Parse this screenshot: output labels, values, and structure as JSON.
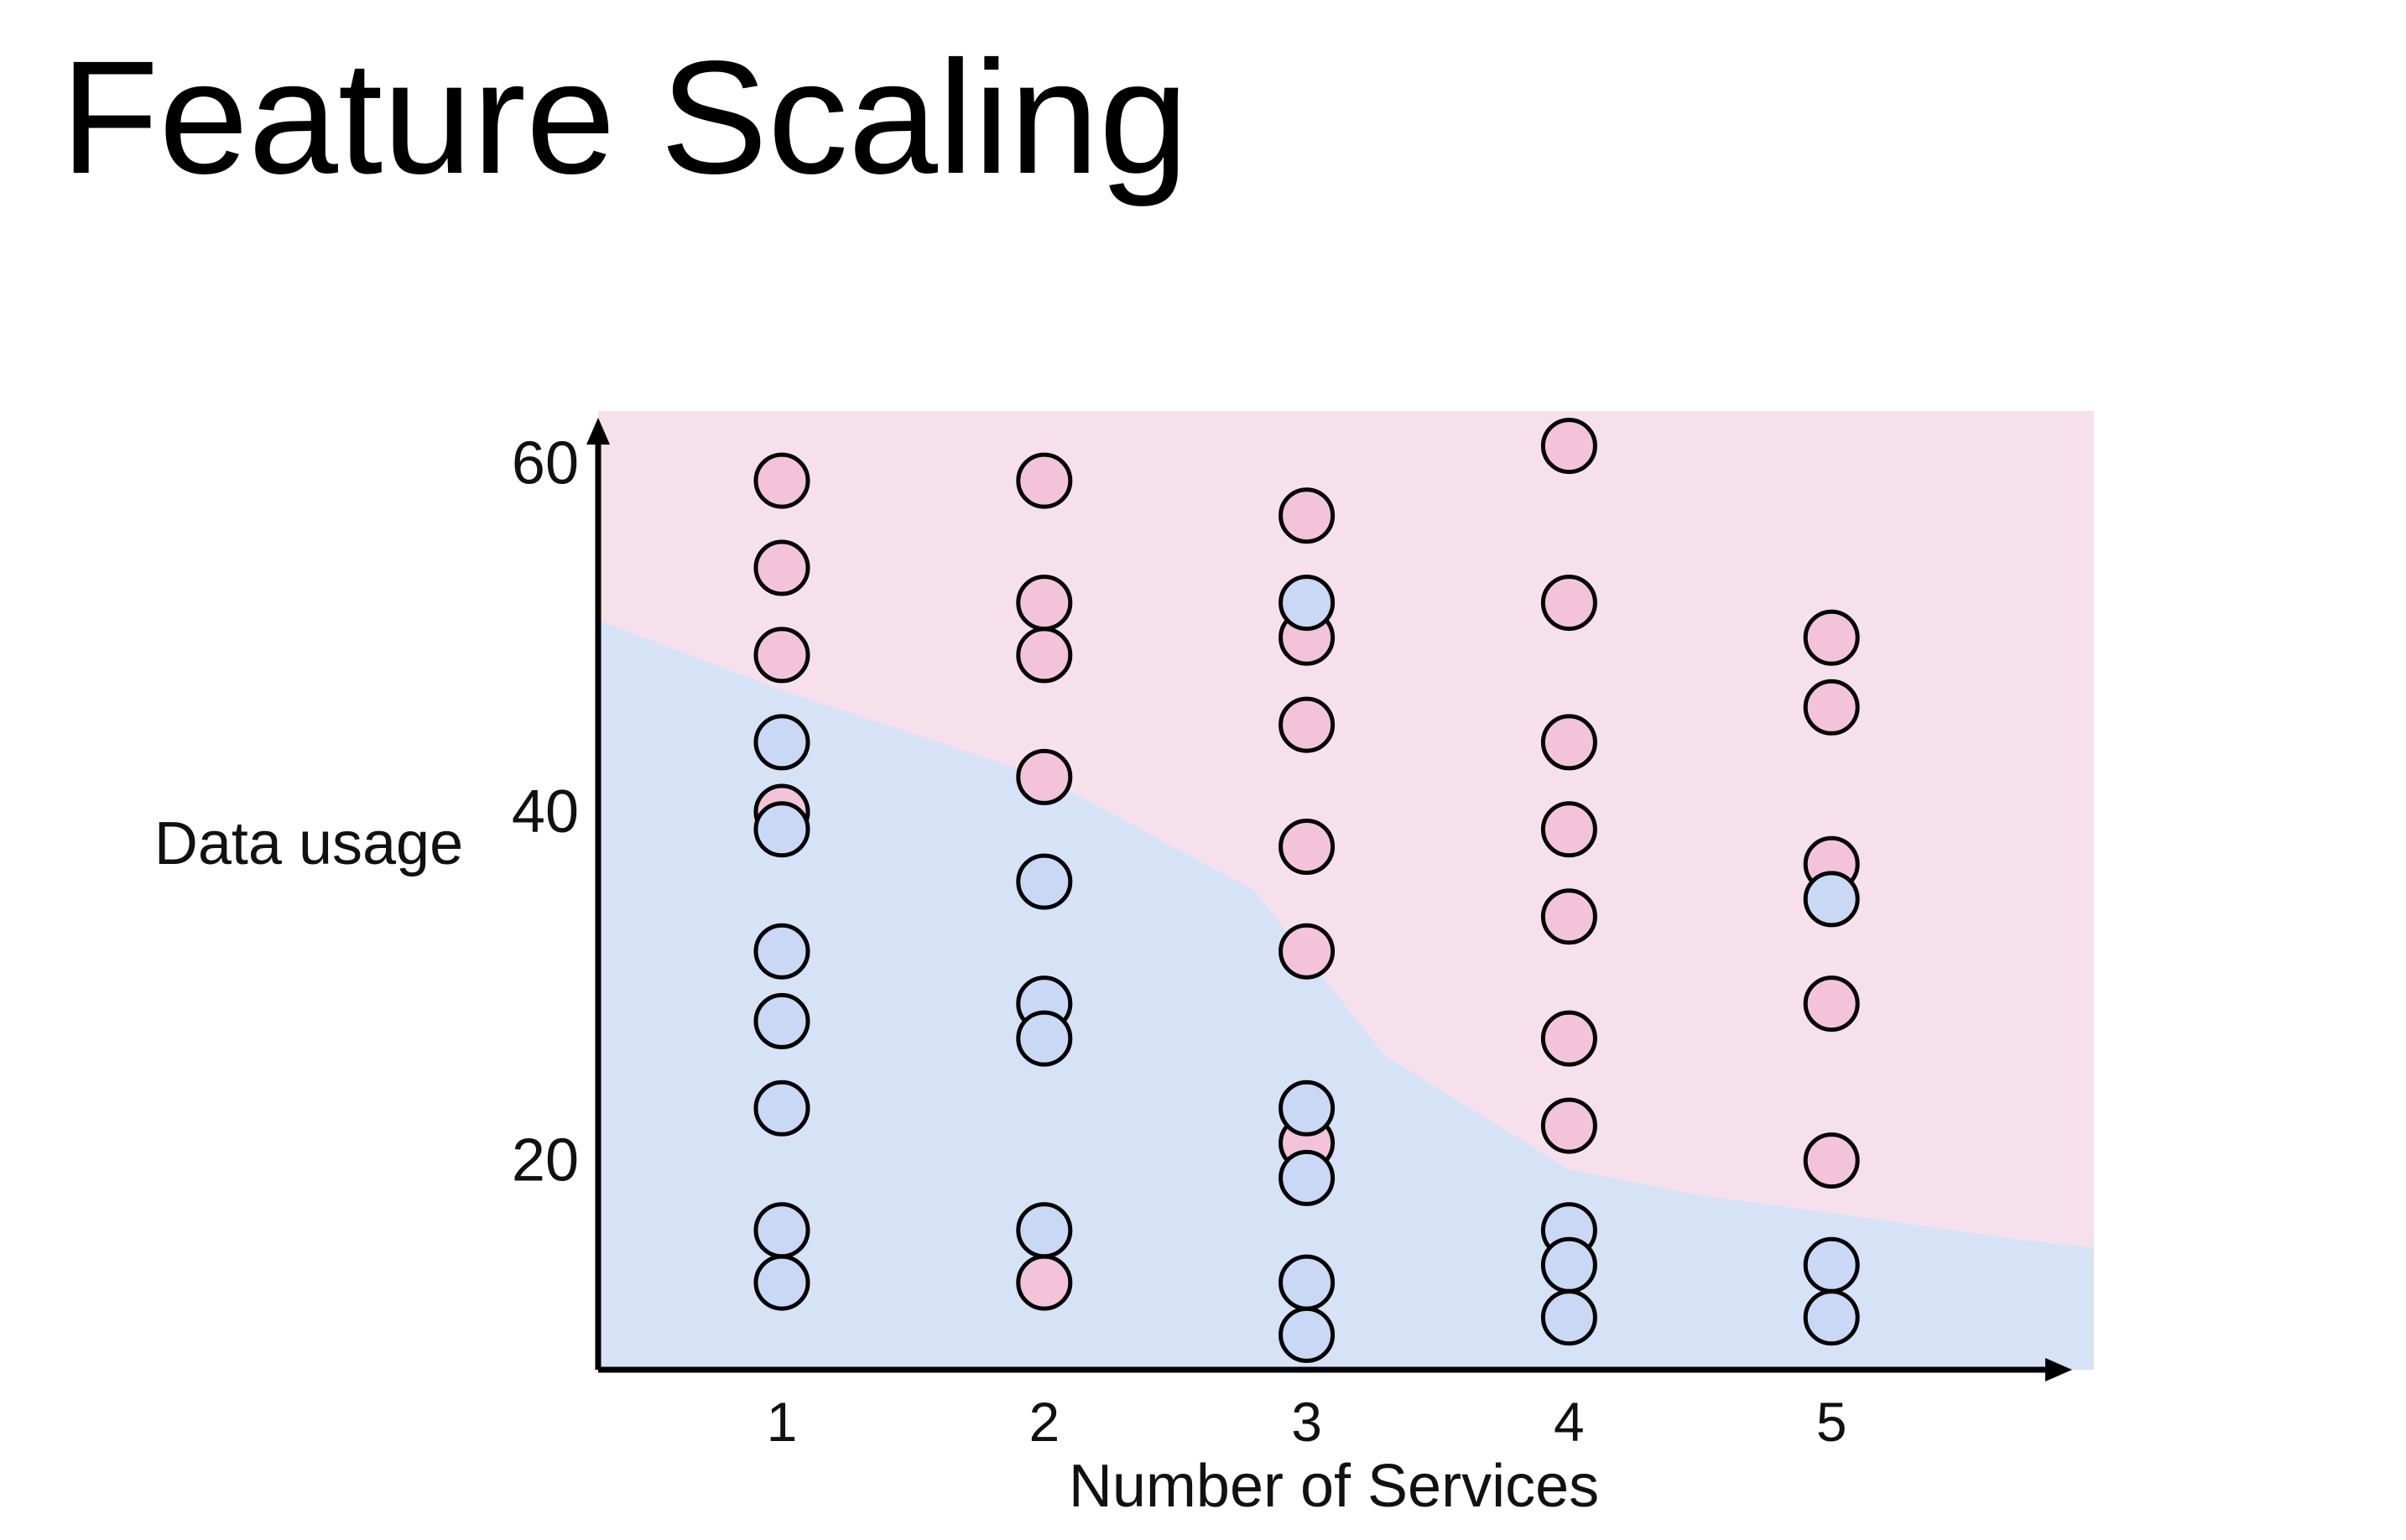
{
  "slide": {
    "title": "Feature Scaling"
  },
  "chart_data": {
    "type": "scatter",
    "title": "",
    "xlabel": "Number of Services",
    "ylabel": "Data usage",
    "x_ticks": [
      1,
      2,
      3,
      4,
      5
    ],
    "y_ticks": [
      20,
      40,
      60
    ],
    "xlim": [
      0.3,
      6.0
    ],
    "ylim": [
      8,
      63
    ],
    "grid": false,
    "legend": "none",
    "regions": [
      {
        "class": "blue",
        "color": "#d6e2f6",
        "position": "below boundary"
      },
      {
        "class": "pink",
        "color": "#f6e0eb",
        "position": "above boundary"
      }
    ],
    "decision_boundary": [
      [
        0.3,
        51
      ],
      [
        1.0,
        47
      ],
      [
        2.0,
        42
      ],
      [
        2.8,
        35.5
      ],
      [
        3.3,
        26
      ],
      [
        4.0,
        19.5
      ],
      [
        4.5,
        18
      ],
      [
        5.0,
        17
      ],
      [
        5.7,
        15.5
      ],
      [
        6.0,
        15
      ]
    ],
    "series": [
      {
        "class": "pink",
        "color": "#f3c4d9",
        "points": [
          [
            1,
            59
          ],
          [
            1,
            54
          ],
          [
            1,
            49
          ],
          [
            1,
            40
          ],
          [
            2,
            59
          ],
          [
            2,
            52
          ],
          [
            2,
            49
          ],
          [
            2,
            42
          ],
          [
            2,
            13
          ],
          [
            3,
            57
          ],
          [
            3,
            50
          ],
          [
            3,
            45
          ],
          [
            3,
            38
          ],
          [
            3,
            32
          ],
          [
            3,
            21
          ],
          [
            4,
            61
          ],
          [
            4,
            52
          ],
          [
            4,
            44
          ],
          [
            4,
            39
          ],
          [
            4,
            34
          ],
          [
            4,
            27
          ],
          [
            4,
            22
          ],
          [
            5,
            50
          ],
          [
            5,
            46
          ],
          [
            5,
            37
          ],
          [
            5,
            29
          ],
          [
            5,
            20
          ]
        ]
      },
      {
        "class": "blue",
        "color": "#c8d8f5",
        "points": [
          [
            1,
            44
          ],
          [
            1,
            39
          ],
          [
            1,
            32
          ],
          [
            1,
            28
          ],
          [
            1,
            23
          ],
          [
            1,
            16
          ],
          [
            1,
            13
          ],
          [
            2,
            36
          ],
          [
            2,
            29
          ],
          [
            2,
            27
          ],
          [
            2,
            16
          ],
          [
            3,
            52
          ],
          [
            3,
            23
          ],
          [
            3,
            19
          ],
          [
            3,
            13
          ],
          [
            3,
            10
          ],
          [
            4,
            16
          ],
          [
            4,
            14
          ],
          [
            4,
            11
          ],
          [
            5,
            35
          ],
          [
            5,
            14
          ],
          [
            5,
            11
          ]
        ]
      }
    ]
  }
}
